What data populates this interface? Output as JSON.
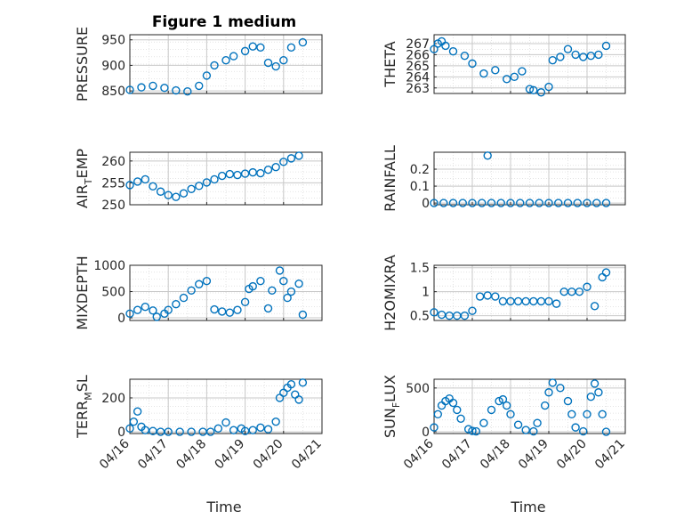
{
  "figure_title": "Figure 1 medium",
  "colors": {
    "marker": "#0072BD",
    "axis": "#262626",
    "grid": "#c8c8c8"
  },
  "chart_data": [
    {
      "type": "scatter",
      "ylabel": "PRESSURE",
      "ylim": [
        845,
        960
      ],
      "yticks": [
        "850",
        "900",
        "950"
      ],
      "ytick_values": [
        850,
        900,
        950
      ],
      "title": "Figure 1 medium",
      "grid": true,
      "marker": "hollow-circle",
      "x": [
        0.0,
        0.3,
        0.6,
        0.9,
        1.2,
        1.5,
        1.8,
        2.0,
        2.2,
        2.5,
        2.7,
        3.0,
        3.2,
        3.4,
        3.6,
        3.8,
        4.0,
        4.2,
        4.5
      ],
      "y": [
        852,
        857,
        860,
        856,
        851,
        849,
        860,
        880,
        900,
        910,
        918,
        928,
        937,
        935,
        905,
        898,
        910,
        935,
        945
      ]
    },
    {
      "type": "scatter",
      "ylabel": "THETA",
      "ylim": [
        262.5,
        267.8
      ],
      "yticks": [
        "263",
        "264",
        "265",
        "266",
        "267"
      ],
      "ytick_values": [
        263,
        264,
        265,
        266,
        267
      ],
      "grid": true,
      "marker": "hollow-circle",
      "x": [
        0.0,
        0.1,
        0.2,
        0.3,
        0.5,
        0.8,
        1.0,
        1.3,
        1.6,
        1.9,
        2.1,
        2.3,
        2.5,
        2.6,
        2.8,
        3.0,
        3.1,
        3.3,
        3.5,
        3.7,
        3.9,
        4.1,
        4.3,
        4.5
      ],
      "y": [
        266.5,
        267.0,
        267.2,
        266.8,
        266.3,
        265.9,
        265.2,
        264.3,
        264.6,
        263.8,
        264.0,
        264.5,
        262.9,
        262.8,
        262.6,
        263.1,
        265.5,
        265.8,
        266.5,
        266.0,
        265.8,
        265.9,
        266.0,
        266.8
      ]
    },
    {
      "type": "scatter",
      "ylabel": "AIR_TEMP",
      "ylabel_main": "AIR",
      "ylabel_sub": "T",
      "ylabel_rest": "EMP",
      "ylim": [
        250,
        262
      ],
      "yticks": [
        "250",
        "255",
        "260"
      ],
      "ytick_values": [
        250,
        255,
        260
      ],
      "grid": true,
      "marker": "hollow-circle",
      "x": [
        0.0,
        0.2,
        0.4,
        0.6,
        0.8,
        1.0,
        1.2,
        1.4,
        1.6,
        1.8,
        2.0,
        2.2,
        2.4,
        2.6,
        2.8,
        3.0,
        3.2,
        3.4,
        3.6,
        3.8,
        4.0,
        4.2,
        4.4
      ],
      "y": [
        254.5,
        255.3,
        255.8,
        254.2,
        253.0,
        252.2,
        251.8,
        252.6,
        253.6,
        254.3,
        255.1,
        255.8,
        256.6,
        257.0,
        256.8,
        257.1,
        257.4,
        257.2,
        258.0,
        258.6,
        259.8,
        260.6,
        261.2
      ]
    },
    {
      "type": "scatter",
      "ylabel": "RAINFALL",
      "ylim": [
        -0.01,
        0.3
      ],
      "yticks": [
        "0",
        "0.1",
        "0.2"
      ],
      "ytick_values": [
        0,
        0.1,
        0.2
      ],
      "grid": true,
      "marker": "hollow-circle",
      "x": [
        0.0,
        0.25,
        0.5,
        0.75,
        1.0,
        1.25,
        1.5,
        1.75,
        2.0,
        2.25,
        2.5,
        2.75,
        3.0,
        3.25,
        3.5,
        3.75,
        4.0,
        4.25,
        4.5,
        1.4
      ],
      "y": [
        0,
        0,
        0,
        0,
        0,
        0,
        0,
        0,
        0,
        0,
        0,
        0,
        0,
        0,
        0,
        0,
        0,
        0,
        0,
        0.28
      ]
    },
    {
      "type": "scatter",
      "ylabel": "MIXDEPTH",
      "ylim": [
        -50,
        1000
      ],
      "yticks": [
        "0",
        "500",
        "1000"
      ],
      "ytick_values": [
        0,
        500,
        1000
      ],
      "grid": true,
      "marker": "hollow-circle",
      "x": [
        0.0,
        0.2,
        0.4,
        0.6,
        0.7,
        0.9,
        1.0,
        1.2,
        1.4,
        1.6,
        1.8,
        2.0,
        2.2,
        2.4,
        2.6,
        2.8,
        3.0,
        3.1,
        3.2,
        3.4,
        3.6,
        3.7,
        3.9,
        4.0,
        4.1,
        4.2,
        4.4,
        4.5
      ],
      "y": [
        80,
        150,
        210,
        140,
        20,
        80,
        150,
        260,
        380,
        520,
        640,
        700,
        160,
        120,
        100,
        150,
        300,
        550,
        600,
        700,
        180,
        520,
        900,
        700,
        380,
        500,
        650,
        60
      ]
    },
    {
      "type": "scatter",
      "ylabel": "H2OMIXRA",
      "ylim": [
        0.4,
        1.55
      ],
      "yticks": [
        "0.5",
        "1",
        "1.5"
      ],
      "ytick_values": [
        0.5,
        1,
        1.5
      ],
      "grid": true,
      "marker": "hollow-circle",
      "x": [
        0.0,
        0.2,
        0.4,
        0.6,
        0.8,
        1.0,
        1.2,
        1.4,
        1.6,
        1.8,
        2.0,
        2.2,
        2.4,
        2.6,
        2.8,
        3.0,
        3.2,
        3.4,
        3.6,
        3.8,
        4.0,
        4.2,
        4.4,
        4.5
      ],
      "y": [
        0.57,
        0.52,
        0.5,
        0.5,
        0.5,
        0.6,
        0.9,
        0.92,
        0.9,
        0.8,
        0.8,
        0.8,
        0.8,
        0.8,
        0.8,
        0.8,
        0.75,
        1.0,
        1.0,
        1.0,
        1.1,
        0.7,
        1.3,
        1.4
      ]
    },
    {
      "type": "scatter",
      "ylabel": "TERR_MSL",
      "ylabel_main": "TERR",
      "ylabel_sub": "M",
      "ylabel_rest": "SL",
      "ylim": [
        -10,
        310
      ],
      "yticks": [
        "0",
        "200"
      ],
      "ytick_values": [
        0,
        200
      ],
      "grid": true,
      "marker": "hollow-circle",
      "x": [
        0.0,
        0.1,
        0.2,
        0.3,
        0.4,
        0.6,
        0.8,
        1.0,
        1.3,
        1.6,
        1.9,
        2.1,
        2.3,
        2.5,
        2.7,
        2.9,
        3.0,
        3.2,
        3.4,
        3.6,
        3.8,
        3.9,
        4.0,
        4.1,
        4.2,
        4.3,
        4.4,
        4.5
      ],
      "y": [
        20,
        60,
        120,
        30,
        10,
        5,
        0,
        0,
        0,
        0,
        0,
        0,
        20,
        55,
        10,
        20,
        5,
        10,
        25,
        15,
        60,
        200,
        230,
        260,
        280,
        220,
        190,
        290
      ]
    },
    {
      "type": "scatter",
      "ylabel": "SUN_FLUX",
      "ylabel_main": "SUN",
      "ylabel_sub": "F",
      "ylabel_rest": "LUX",
      "ylim": [
        -20,
        600
      ],
      "yticks": [
        "0",
        "500"
      ],
      "ytick_values": [
        0,
        500
      ],
      "grid": true,
      "marker": "hollow-circle",
      "x": [
        0.0,
        0.1,
        0.2,
        0.3,
        0.4,
        0.5,
        0.6,
        0.7,
        0.9,
        1.0,
        1.1,
        1.3,
        1.5,
        1.7,
        1.8,
        1.9,
        2.0,
        2.2,
        2.4,
        2.6,
        2.7,
        2.9,
        3.0,
        3.1,
        3.3,
        3.5,
        3.6,
        3.7,
        3.9,
        4.0,
        4.1,
        4.2,
        4.3,
        4.4,
        4.5
      ],
      "y": [
        50,
        200,
        300,
        350,
        380,
        330,
        250,
        150,
        30,
        10,
        5,
        100,
        250,
        350,
        370,
        300,
        200,
        80,
        20,
        5,
        100,
        300,
        450,
        560,
        500,
        350,
        200,
        50,
        5,
        200,
        400,
        550,
        450,
        200,
        0
      ]
    }
  ],
  "x_axis": {
    "label": "Time",
    "ticks": [
      "04/16",
      "04/17",
      "04/18",
      "04/19",
      "04/20",
      "04/21"
    ],
    "tick_values": [
      0,
      1,
      2,
      3,
      4,
      5
    ],
    "xlim": [
      0,
      5
    ]
  }
}
